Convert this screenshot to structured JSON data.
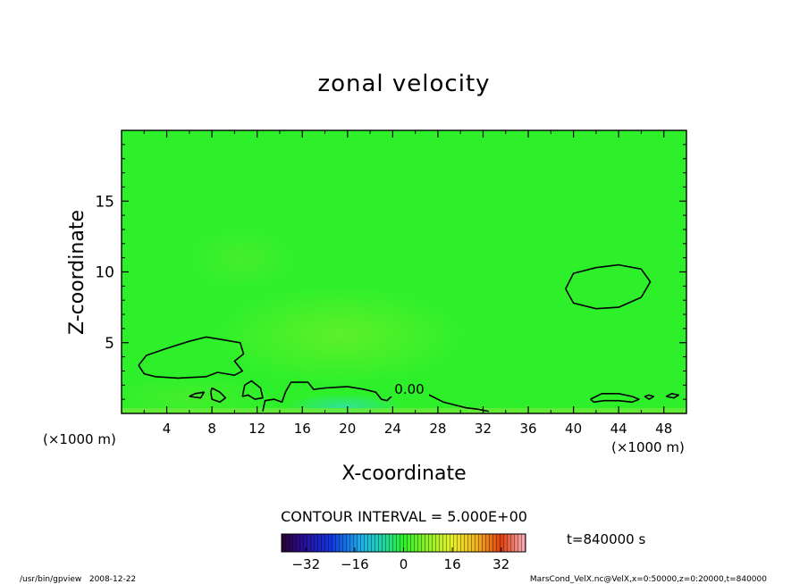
{
  "chart_data": {
    "type": "heatmap",
    "title": "zonal velocity",
    "xlabel": "X-coordinate",
    "ylabel": "Z-coordinate",
    "x_unit_note": "(×1000 m)",
    "y_unit_note": "(×1000 m)",
    "xlim": [
      0,
      50
    ],
    "ylim": [
      0,
      20
    ],
    "x_ticks": [
      4,
      8,
      12,
      16,
      20,
      24,
      28,
      32,
      36,
      40,
      44,
      48
    ],
    "y_ticks": [
      5,
      10,
      15
    ],
    "contour_label": "0.00",
    "contour_interval": "CONTOUR INTERVAL = 5.000E+00",
    "time_label": "t=840000 s",
    "colorbar": {
      "range": [
        -40,
        40
      ],
      "ticks": [
        -32,
        -16,
        0,
        16,
        32
      ]
    },
    "zero_contours": [
      {
        "name": "left-blob",
        "points": [
          [
            1.5,
            3.4
          ],
          [
            2.2,
            4.1
          ],
          [
            4,
            4.6
          ],
          [
            6,
            5.1
          ],
          [
            7.5,
            5.4
          ],
          [
            9,
            5.2
          ],
          [
            10.5,
            5
          ],
          [
            10.8,
            4.2
          ],
          [
            10,
            3.7
          ],
          [
            10.7,
            3
          ],
          [
            10,
            2.7
          ],
          [
            8.5,
            2.9
          ],
          [
            7.5,
            2.6
          ],
          [
            5,
            2.5
          ],
          [
            3,
            2.6
          ],
          [
            2,
            2.8
          ],
          [
            1.5,
            3.4
          ]
        ]
      },
      {
        "name": "right-oval",
        "points": [
          [
            39.3,
            8.8
          ],
          [
            40,
            9.9
          ],
          [
            42,
            10.3
          ],
          [
            44,
            10.5
          ],
          [
            46,
            10.2
          ],
          [
            46.8,
            9.3
          ],
          [
            46,
            8.2
          ],
          [
            44,
            7.5
          ],
          [
            42,
            7.4
          ],
          [
            40,
            7.8
          ],
          [
            39.3,
            8.8
          ]
        ]
      },
      {
        "name": "mid-1",
        "points": [
          [
            10.7,
            1.2
          ],
          [
            10.9,
            2
          ],
          [
            11.5,
            2.3
          ],
          [
            12.3,
            1.8
          ],
          [
            12.5,
            1.1
          ],
          [
            11.8,
            1
          ],
          [
            11.2,
            1.3
          ],
          [
            10.7,
            1.2
          ]
        ]
      },
      {
        "name": "mid-2",
        "points": [
          [
            6,
            1.2
          ],
          [
            6.5,
            1.4
          ],
          [
            7.3,
            1.5
          ],
          [
            7,
            1.1
          ],
          [
            6,
            1.2
          ]
        ]
      },
      {
        "name": "mid-3",
        "points": [
          [
            8,
            1.8
          ],
          [
            8.7,
            1.5
          ],
          [
            9.2,
            1.1
          ],
          [
            8.7,
            0.8
          ],
          [
            8,
            1
          ],
          [
            7.9,
            1.5
          ],
          [
            8,
            1.8
          ]
        ]
      },
      {
        "name": "bottom-ridge",
        "points": [
          [
            12.5,
            0.15
          ],
          [
            12.7,
            0.9
          ],
          [
            13.5,
            1
          ],
          [
            14.2,
            0.8
          ],
          [
            14.5,
            1.5
          ],
          [
            15,
            2.2
          ],
          [
            16.5,
            2.2
          ],
          [
            17,
            1.7
          ],
          [
            18,
            1.8
          ],
          [
            20,
            1.9
          ],
          [
            21.5,
            1.7
          ],
          [
            22.5,
            1.5
          ],
          [
            23,
            1
          ],
          [
            23.5,
            0.9
          ],
          [
            24.5,
            1.7
          ],
          [
            25.5,
            1.7
          ],
          [
            26.5,
            1.6
          ],
          [
            27.5,
            1.2
          ],
          [
            28.5,
            0.8
          ],
          [
            29.5,
            0.6
          ],
          [
            30.5,
            0.4
          ],
          [
            31.5,
            0.3
          ],
          [
            32.5,
            0.15
          ]
        ]
      },
      {
        "name": "right-low",
        "points": [
          [
            41.5,
            1
          ],
          [
            42.5,
            1.4
          ],
          [
            44,
            1.4
          ],
          [
            45.2,
            1.2
          ],
          [
            45.8,
            1
          ],
          [
            45.2,
            0.8
          ],
          [
            44,
            0.9
          ],
          [
            42.7,
            0.9
          ],
          [
            41.8,
            0.8
          ],
          [
            41.5,
            1
          ]
        ]
      },
      {
        "name": "right-low-2",
        "points": [
          [
            46.3,
            1.2
          ],
          [
            46.7,
            1.3
          ],
          [
            47.1,
            1.2
          ],
          [
            46.7,
            1
          ],
          [
            46.3,
            1.2
          ]
        ]
      },
      {
        "name": "right-low-3",
        "points": [
          [
            48.2,
            1.2
          ],
          [
            48.7,
            1.4
          ],
          [
            49.3,
            1.3
          ],
          [
            48.9,
            1.1
          ],
          [
            48.2,
            1.2
          ]
        ]
      }
    ]
  },
  "footer": {
    "left": "/usr/bin/gpview   2008-12-22",
    "right": "MarsCond_VelX.nc@VelX,x=0:50000,z=0:20000,t=840000"
  },
  "colors": {
    "field": "#2ef02a",
    "frame": "#000000"
  }
}
